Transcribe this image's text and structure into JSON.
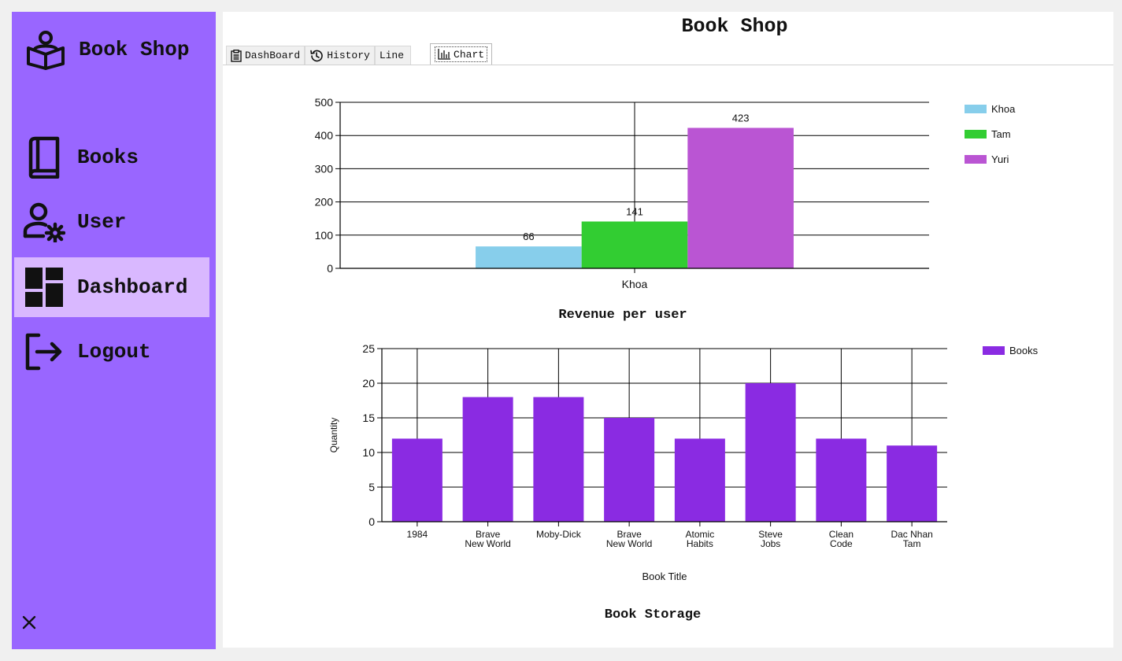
{
  "app": {
    "brand": "Book Shop",
    "title": "Book Shop"
  },
  "sidebar": {
    "items": [
      {
        "label": "Books",
        "icon": "book-icon"
      },
      {
        "label": "User",
        "icon": "user-settings-icon"
      },
      {
        "label": "Dashboard",
        "icon": "dashboard-icon",
        "active": true
      },
      {
        "label": "Logout",
        "icon": "logout-icon"
      }
    ],
    "close_icon": "close-icon"
  },
  "tabs": [
    {
      "label": "DashBoard",
      "icon": "clipboard-icon"
    },
    {
      "label": "History",
      "icon": "history-icon"
    },
    {
      "label": "Line"
    },
    {
      "label": "Chart",
      "icon": "bar-chart-icon",
      "active": true
    }
  ],
  "colors": {
    "sidebar": "#9966ff",
    "active_item": "#d9b8ff",
    "khoa": "#87ceeb",
    "tam": "#32cd32",
    "yuri": "#ba55d3",
    "books": "#8a2be2"
  },
  "chart_data": [
    {
      "type": "bar",
      "title": "Revenue per user",
      "categories": [
        "Khoa"
      ],
      "series": [
        {
          "name": "Khoa",
          "values": [
            66
          ],
          "color": "#87ceeb"
        },
        {
          "name": "Tam",
          "values": [
            141
          ],
          "color": "#32cd32"
        },
        {
          "name": "Yuri",
          "values": [
            423
          ],
          "color": "#ba55d3"
        }
      ],
      "data_labels": true,
      "ylim": [
        0,
        500
      ],
      "yticks": [
        0,
        100,
        200,
        300,
        400,
        500
      ],
      "xlabel": "",
      "ylabel": "",
      "grid": true,
      "legend": "top-right"
    },
    {
      "type": "bar",
      "title": "Book Storage",
      "categories": [
        "1984",
        "Brave\nNew World",
        "Moby-Dick",
        "Brave\nNew World",
        "Atomic\nHabits",
        "Steve\nJobs",
        "Clean\nCode",
        "Dac Nhan\nTam"
      ],
      "series": [
        {
          "name": "Books",
          "values": [
            12,
            18,
            18,
            15,
            12,
            20,
            12,
            11
          ],
          "color": "#8a2be2"
        }
      ],
      "ylim": [
        0,
        25
      ],
      "yticks": [
        0,
        5,
        10,
        15,
        20,
        25
      ],
      "xlabel": "Book Title",
      "ylabel": "Quantity",
      "grid": true,
      "legend": "top-right"
    }
  ]
}
